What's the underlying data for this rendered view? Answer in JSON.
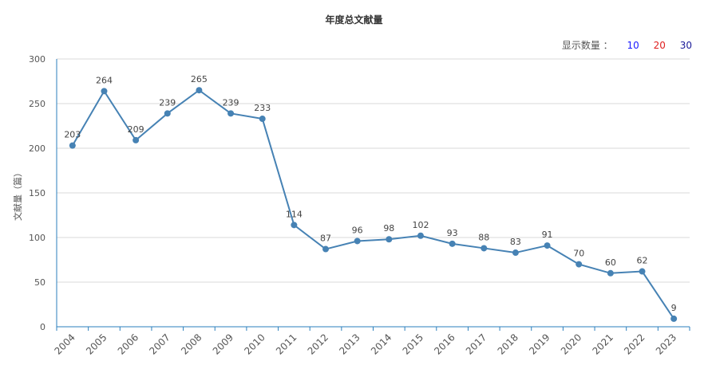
{
  "chart_data": {
    "type": "line",
    "title": "年度总文献量",
    "xlabel": "",
    "ylabel": "文献量（篇）",
    "ylim": [
      0,
      300
    ],
    "yticks": [
      0,
      50,
      100,
      150,
      200,
      250,
      300
    ],
    "categories": [
      "2004",
      "2005",
      "2006",
      "2007",
      "2008",
      "2009",
      "2010",
      "2011",
      "2012",
      "2013",
      "2014",
      "2015",
      "2016",
      "2017",
      "2018",
      "2019",
      "2020",
      "2021",
      "2022",
      "2023"
    ],
    "series": [
      {
        "values": [
          203,
          264,
          209,
          239,
          265,
          239,
          233,
          114,
          87,
          96,
          98,
          102,
          93,
          88,
          83,
          91,
          70,
          60,
          62,
          9
        ]
      }
    ],
    "grid": true,
    "line_color": "#4682b4"
  },
  "controls": {
    "display_label": "显示数量 ：",
    "options": [
      {
        "label": "10",
        "color": "#1a1aff"
      },
      {
        "label": "20",
        "color": "#e02020"
      },
      {
        "label": "30",
        "color": "#1a1a99"
      }
    ]
  }
}
